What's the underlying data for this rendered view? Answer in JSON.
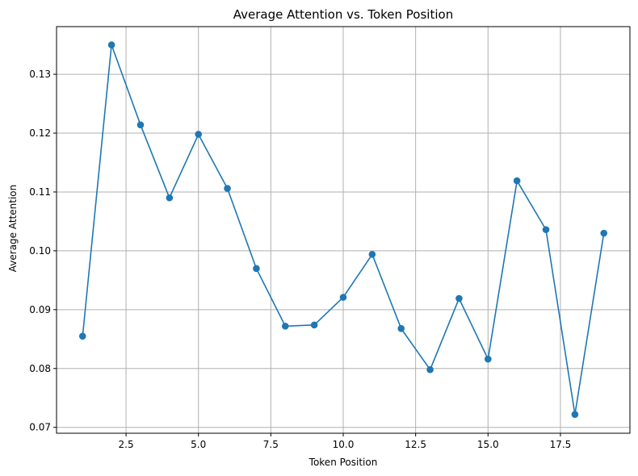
{
  "chart_data": {
    "type": "line",
    "title": "Average Attention vs. Token Position",
    "xlabel": "Token Position",
    "ylabel": "Average Attention",
    "xlim": [
      0.1,
      19.9
    ],
    "ylim": [
      0.069,
      0.1381
    ],
    "grid": true,
    "color": "#1f77b4",
    "marker": "circle",
    "x_ticks": [
      2.5,
      5.0,
      7.5,
      10.0,
      12.5,
      15.0,
      17.5
    ],
    "x_tick_labels": [
      "2.5",
      "5.0",
      "7.5",
      "10.0",
      "12.5",
      "15.0",
      "17.5"
    ],
    "y_ticks": [
      0.07,
      0.08,
      0.09,
      0.1,
      0.11,
      0.12,
      0.13
    ],
    "y_tick_labels": [
      "0.07",
      "0.08",
      "0.09",
      "0.10",
      "0.11",
      "0.12",
      "0.13"
    ],
    "series": [
      {
        "x": [
          1,
          2,
          3,
          4,
          5,
          6,
          7,
          8,
          9,
          10,
          11,
          12,
          13,
          14,
          15,
          16,
          17,
          18,
          19
        ],
        "values": [
          0.0855,
          0.135,
          0.1214,
          0.109,
          0.1198,
          0.1106,
          0.097,
          0.0872,
          0.0874,
          0.0921,
          0.0994,
          0.0868,
          0.0798,
          0.0919,
          0.0816,
          0.1119,
          0.1036,
          0.0722,
          0.103
        ]
      }
    ]
  }
}
